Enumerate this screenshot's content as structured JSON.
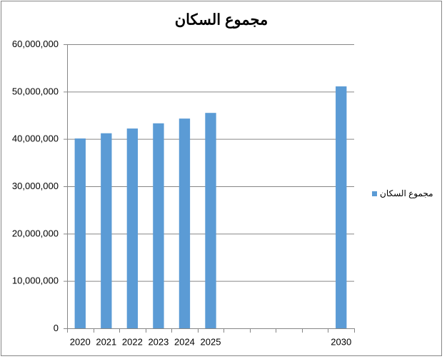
{
  "chart_data": {
    "type": "bar",
    "title": "مجموع السكان",
    "categories": [
      "2020",
      "2021",
      "2022",
      "2023",
      "2024",
      "2025",
      null,
      null,
      null,
      null,
      "2030"
    ],
    "series": [
      {
        "name": "مجموع السكان",
        "color": "#5b9bd5",
        "values": [
          40100000,
          41200000,
          42200000,
          43300000,
          44300000,
          45500000,
          null,
          null,
          null,
          null,
          51100000
        ]
      }
    ],
    "ylim": [
      0,
      60000000
    ],
    "yticks": [
      0,
      {
        "value": 10000000,
        "label": "10,000,000"
      },
      {
        "value": 20000000,
        "label": "20,000,000"
      },
      {
        "value": 30000000,
        "label": "30,000,000"
      },
      {
        "value": 40000000,
        "label": "40,000,000"
      },
      {
        "value": 50000000,
        "label": "50,000,000"
      },
      {
        "value": 60000000,
        "label": "60,000,000"
      }
    ],
    "grid": true,
    "legend": "right"
  }
}
